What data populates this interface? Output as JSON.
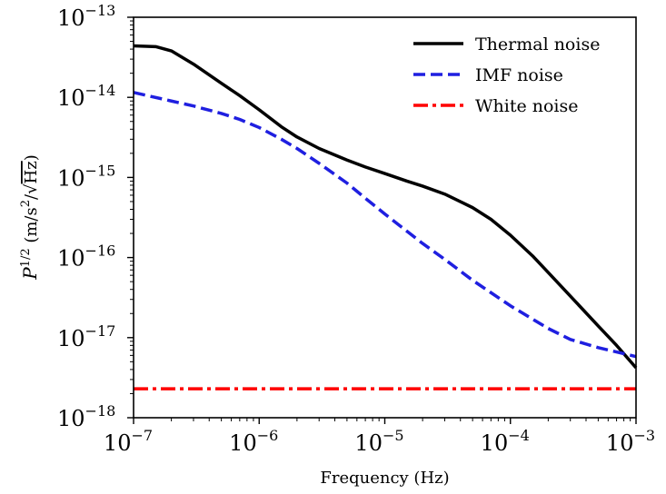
{
  "chart_data": {
    "type": "line",
    "xlabel": "Frequency (Hz)",
    "ylabel": {
      "base": "P",
      "base_exp": "1/2",
      "units_open": " (m/s",
      "units_exp": "2",
      "units_mid": "/",
      "sqrt_symbol": "√",
      "units_inner": "Hz",
      "units_close": ")"
    },
    "xscale": "log",
    "yscale": "log",
    "xlim": [
      1e-07,
      0.001
    ],
    "ylim": [
      1e-18,
      1e-13
    ],
    "grid": false,
    "legend_position": "top-right",
    "x_ticks": [
      {
        "base": "10",
        "exp": "−7"
      },
      {
        "base": "10",
        "exp": "−6"
      },
      {
        "base": "10",
        "exp": "−5"
      },
      {
        "base": "10",
        "exp": "−4"
      },
      {
        "base": "10",
        "exp": "−3"
      }
    ],
    "y_ticks": [
      {
        "base": "10",
        "exp": "−18"
      },
      {
        "base": "10",
        "exp": "−17"
      },
      {
        "base": "10",
        "exp": "−16"
      },
      {
        "base": "10",
        "exp": "−15"
      },
      {
        "base": "10",
        "exp": "−14"
      },
      {
        "base": "10",
        "exp": "−13"
      }
    ],
    "series": [
      {
        "name": "Thermal noise",
        "color": "#000000",
        "style": "solid",
        "x": [
          1e-07,
          1.5e-07,
          2e-07,
          3e-07,
          5e-07,
          7e-07,
          1e-06,
          1.5e-06,
          2e-06,
          3e-06,
          5e-06,
          7e-06,
          1e-05,
          1.5e-05,
          2e-05,
          3e-05,
          5e-05,
          7e-05,
          0.0001,
          0.00015,
          0.0002,
          0.0003,
          0.0005,
          0.0007,
          0.001
        ],
        "y": [
          4.4e-14,
          4.3e-14,
          3.8e-14,
          2.6e-14,
          1.5e-14,
          1.05e-14,
          7e-15,
          4.3e-15,
          3.2e-15,
          2.3e-15,
          1.65e-15,
          1.35e-15,
          1.12e-15,
          9e-16,
          7.8e-16,
          6.2e-16,
          4.2e-16,
          3e-16,
          1.9e-16,
          1.05e-16,
          6.5e-17,
          3.3e-17,
          1.4e-17,
          8e-18,
          4.2e-18
        ]
      },
      {
        "name": "IMF noise",
        "color": "#1f1fe0",
        "style": "dashed",
        "x": [
          1e-07,
          2e-07,
          3e-07,
          5e-07,
          7e-07,
          1e-06,
          1.5e-06,
          2e-06,
          3e-06,
          5e-06,
          7e-06,
          1e-05,
          2e-05,
          3e-05,
          5e-05,
          0.0001,
          0.0002,
          0.0003,
          0.0005,
          0.001
        ],
        "y": [
          1.15e-14,
          9e-15,
          7.8e-15,
          6.3e-15,
          5.3e-15,
          4.2e-15,
          3e-15,
          2.3e-15,
          1.5e-15,
          8.5e-16,
          5.5e-16,
          3.5e-16,
          1.5e-16,
          9.5e-17,
          5.2e-17,
          2.5e-17,
          1.3e-17,
          9.5e-18,
          7.5e-18,
          5.8e-18
        ]
      },
      {
        "name": "White noise",
        "color": "#ff0000",
        "style": "dashdot",
        "x": [
          1e-07,
          0.001
        ],
        "y": [
          2.3e-18,
          2.3e-18
        ]
      }
    ]
  }
}
